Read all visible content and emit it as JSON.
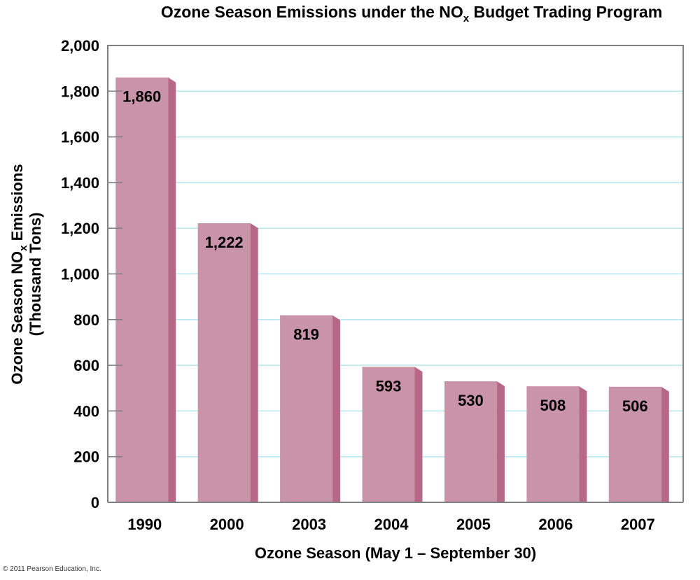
{
  "chart_data": {
    "type": "bar",
    "title_parts": [
      "Ozone Season Emissions under the NO",
      "x",
      " Budget Trading Program"
    ],
    "title": "Ozone Season Emissions under the NOx Budget Trading Program",
    "categories": [
      "1990",
      "2000",
      "2003",
      "2004",
      "2005",
      "2006",
      "2007"
    ],
    "values": [
      1860,
      1222,
      819,
      593,
      530,
      508,
      506
    ],
    "data_labels": [
      "1,860",
      "1,222",
      "819",
      "593",
      "530",
      "508",
      "506"
    ],
    "xlabel": "Ozone Season (May 1 – September 30)",
    "ylabel_parts": [
      "Ozone Season NO",
      "x",
      " Emissions"
    ],
    "ylabel_line2": "(Thousand Tons)",
    "ylabel": "Ozone Season NOx Emissions (Thousand Tons)",
    "ylim": [
      0,
      2000
    ],
    "yticks": [
      0,
      200,
      400,
      600,
      800,
      1000,
      1200,
      1400,
      1600,
      1800,
      2000
    ],
    "ytick_labels": [
      "0",
      "200",
      "400",
      "600",
      "800",
      "1,000",
      "1,200",
      "1,400",
      "1,600",
      "1,800",
      "2,000"
    ],
    "grid": true,
    "legend": "none",
    "colors": {
      "bar_front": "#c994a8",
      "bar_side": "#b86887",
      "grid": "#b5e6f3",
      "axis": "#808080"
    }
  },
  "footer": {
    "copyright": "© 2011 Pearson Education, Inc."
  }
}
